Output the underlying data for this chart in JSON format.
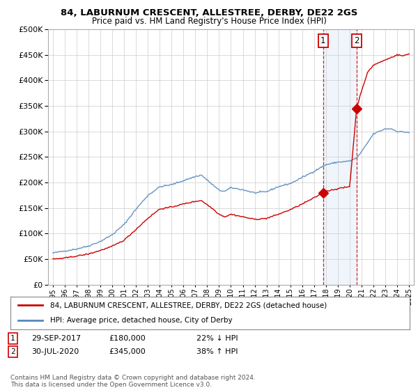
{
  "title": "84, LABURNUM CRESCENT, ALLESTREE, DERBY, DE22 2GS",
  "subtitle": "Price paid vs. HM Land Registry's House Price Index (HPI)",
  "legend_label_red": "84, LABURNUM CRESCENT, ALLESTREE, DERBY, DE22 2GS (detached house)",
  "legend_label_blue": "HPI: Average price, detached house, City of Derby",
  "annotation1_label": "1",
  "annotation1_date": "29-SEP-2017",
  "annotation1_price": "£180,000",
  "annotation1_hpi": "22% ↓ HPI",
  "annotation2_label": "2",
  "annotation2_date": "30-JUL-2020",
  "annotation2_price": "£345,000",
  "annotation2_hpi": "38% ↑ HPI",
  "footnote": "Contains HM Land Registry data © Crown copyright and database right 2024.\nThis data is licensed under the Open Government Licence v3.0.",
  "ylim": [
    0,
    500000
  ],
  "yticks": [
    0,
    50000,
    100000,
    150000,
    200000,
    250000,
    300000,
    350000,
    400000,
    450000,
    500000
  ],
  "purchase1_year": 2017.75,
  "purchase1_value": 180000,
  "purchase2_year": 2020.58,
  "purchase2_value": 345000,
  "bg_color": "#ffffff",
  "plot_bg_color": "#ffffff",
  "grid_color": "#cccccc",
  "red_color": "#cc0000",
  "blue_color": "#5588bb",
  "highlight_bg": "#ddeeff"
}
